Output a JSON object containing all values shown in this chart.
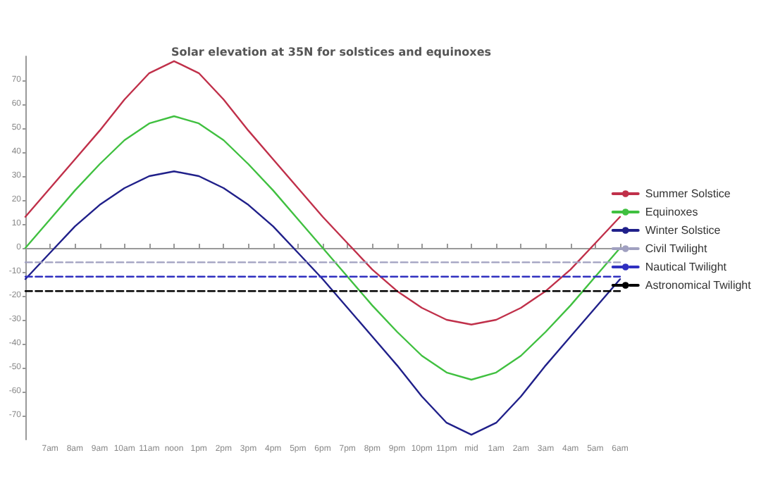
{
  "chart_data": {
    "type": "line",
    "title": "Solar elevation at 35N for solstices and equinoxes",
    "categories": [
      null,
      "7am",
      "8am",
      "9am",
      "10am",
      "11am",
      "noon",
      "1pm",
      "2pm",
      "3pm",
      "4pm",
      "5pm",
      "6pm",
      "7pm",
      "8pm",
      "9pm",
      "10pm",
      "11pm",
      "mid",
      "1am",
      "2am",
      "3am",
      "4am",
      "5am",
      "6am"
    ],
    "ylim": [
      -80,
      80
    ],
    "yticks": [
      -70,
      -60,
      -50,
      -40,
      -30,
      -20,
      -10,
      0,
      10,
      20,
      30,
      40,
      50,
      60,
      70
    ],
    "series": [
      {
        "name": "Summer Solstice",
        "color": "#c0304a",
        "line_style": "solid",
        "values": [
          13,
          25,
          37,
          49,
          62,
          73,
          78,
          73,
          62,
          49,
          37,
          25,
          13,
          2,
          -9,
          -18,
          -25,
          -30,
          -32,
          -30,
          -25,
          -18,
          -9,
          2,
          13
        ]
      },
      {
        "name": "Equinoxes",
        "color": "#40c040",
        "line_style": "solid",
        "values": [
          0,
          12,
          24,
          35,
          45,
          52,
          55,
          52,
          45,
          35,
          24,
          12,
          0,
          -12,
          -24,
          -35,
          -45,
          -52,
          -55,
          -52,
          -45,
          -35,
          -24,
          -12,
          0
        ]
      },
      {
        "name": "Winter Solstice",
        "color": "#20208a",
        "line_style": "solid",
        "values": [
          -13,
          -2,
          9,
          18,
          25,
          30,
          32,
          30,
          25,
          18,
          9,
          -2,
          -13,
          -25,
          -37,
          -49,
          -62,
          -73,
          -78,
          -73,
          -62,
          -49,
          -37,
          -25,
          -13
        ]
      },
      {
        "name": "Civil Twilight",
        "color": "#a0a0c0",
        "line_style": "dashed",
        "values": [
          -6,
          -6,
          -6,
          -6,
          -6,
          -6,
          -6,
          -6,
          -6,
          -6,
          -6,
          -6,
          -6,
          -6,
          -6,
          -6,
          -6,
          -6,
          -6,
          -6,
          -6,
          -6,
          -6,
          -6,
          -6
        ]
      },
      {
        "name": "Nautical Twilight",
        "color": "#3030c0",
        "line_style": "dashed",
        "values": [
          -12,
          -12,
          -12,
          -12,
          -12,
          -12,
          -12,
          -12,
          -12,
          -12,
          -12,
          -12,
          -12,
          -12,
          -12,
          -12,
          -12,
          -12,
          -12,
          -12,
          -12,
          -12,
          -12,
          -12,
          -12
        ]
      },
      {
        "name": "Astronomical Twilight",
        "color": "#000000",
        "line_style": "dashed",
        "values": [
          -18,
          -18,
          -18,
          -18,
          -18,
          -18,
          -18,
          -18,
          -18,
          -18,
          -18,
          -18,
          -18,
          -18,
          -18,
          -18,
          -18,
          -18,
          -18,
          -18,
          -18,
          -18,
          -18,
          -18,
          -18
        ]
      }
    ],
    "marker": "none",
    "legend": "right"
  }
}
